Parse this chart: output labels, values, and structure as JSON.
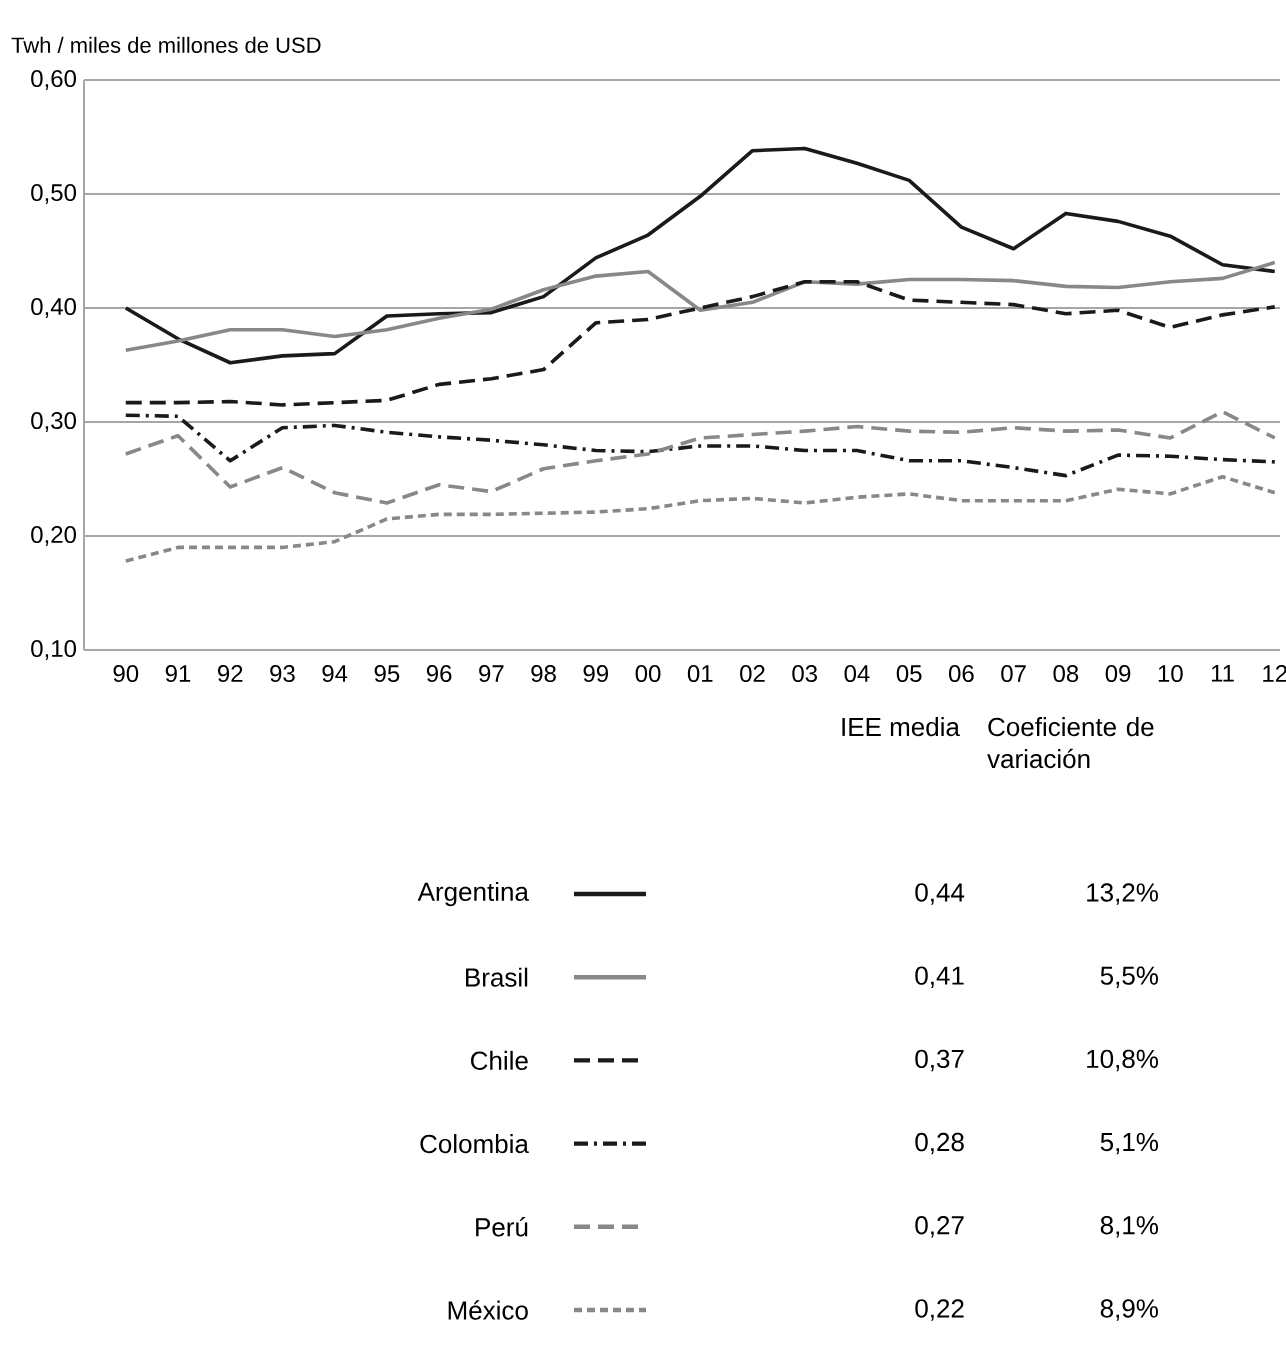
{
  "chart_data": {
    "type": "line",
    "ylabel": "Twh / miles de millones de USD",
    "categories": [
      "90",
      "91",
      "92",
      "93",
      "94",
      "95",
      "96",
      "97",
      "98",
      "99",
      "00",
      "01",
      "02",
      "03",
      "04",
      "05",
      "06",
      "07",
      "08",
      "09",
      "10",
      "11",
      "12"
    ],
    "ylim": [
      0.1,
      0.6
    ],
    "yticks": [
      {
        "value": 0.1,
        "label": "0,10"
      },
      {
        "value": 0.2,
        "label": "0,20"
      },
      {
        "value": 0.3,
        "label": "0,30"
      },
      {
        "value": 0.4,
        "label": "0,40"
      },
      {
        "value": 0.5,
        "label": "0,50"
      },
      {
        "value": 0.6,
        "label": "0,60"
      }
    ],
    "grid": "y",
    "legend": "bottom",
    "series": [
      {
        "name": "Argentina",
        "color": "#1a1a1a",
        "line_style": "solid",
        "values": [
          0.4,
          0.373,
          0.352,
          0.358,
          0.36,
          0.393,
          0.395,
          0.396,
          0.41,
          0.444,
          0.464,
          0.498,
          0.538,
          0.54,
          0.527,
          0.512,
          0.471,
          0.452,
          0.483,
          0.476,
          0.463,
          0.438,
          0.432
        ]
      },
      {
        "name": "Brasil",
        "color": "#888888",
        "line_style": "solid",
        "values": [
          0.363,
          0.371,
          0.381,
          0.381,
          0.375,
          0.381,
          0.391,
          0.399,
          0.416,
          0.428,
          0.432,
          0.398,
          0.405,
          0.423,
          0.421,
          0.425,
          0.425,
          0.424,
          0.419,
          0.418,
          0.423,
          0.426,
          0.44
        ]
      },
      {
        "name": "Chile",
        "color": "#1a1a1a",
        "line_style": "dashed",
        "values": [
          0.317,
          0.317,
          0.318,
          0.315,
          0.317,
          0.319,
          0.333,
          0.338,
          0.346,
          0.387,
          0.39,
          0.4,
          0.41,
          0.423,
          0.423,
          0.407,
          0.405,
          0.403,
          0.395,
          0.398,
          0.383,
          0.394,
          0.401
        ]
      },
      {
        "name": "Colombia",
        "color": "#1a1a1a",
        "line_style": "dashdot",
        "values": [
          0.306,
          0.305,
          0.266,
          0.295,
          0.297,
          0.291,
          0.287,
          0.284,
          0.28,
          0.275,
          0.274,
          0.279,
          0.279,
          0.275,
          0.275,
          0.266,
          0.266,
          0.26,
          0.253,
          0.271,
          0.27,
          0.267,
          0.265
        ]
      },
      {
        "name": "Perú",
        "color": "#888888",
        "line_style": "dashed",
        "values": [
          0.272,
          0.288,
          0.243,
          0.26,
          0.238,
          0.229,
          0.245,
          0.239,
          0.259,
          0.266,
          0.272,
          0.286,
          0.289,
          0.292,
          0.296,
          0.292,
          0.291,
          0.295,
          0.292,
          0.293,
          0.286,
          0.309,
          0.286
        ]
      },
      {
        "name": "México",
        "color": "#888888",
        "line_style": "dotted",
        "values": [
          0.178,
          0.19,
          0.19,
          0.19,
          0.195,
          0.215,
          0.219,
          0.219,
          0.22,
          0.221,
          0.224,
          0.231,
          0.233,
          0.229,
          0.234,
          0.237,
          0.231,
          0.231,
          0.231,
          0.241,
          0.237,
          0.252,
          0.238
        ]
      }
    ],
    "annotations": [
      "IEE media",
      "Coeficiente de variación",
      "0,44",
      "13,2%",
      "0,41",
      "5,5%",
      "0,37",
      "10,8%",
      "0,28",
      "5,1%",
      "0,27",
      "8,1%",
      "0,22",
      "8,9%"
    ]
  }
}
